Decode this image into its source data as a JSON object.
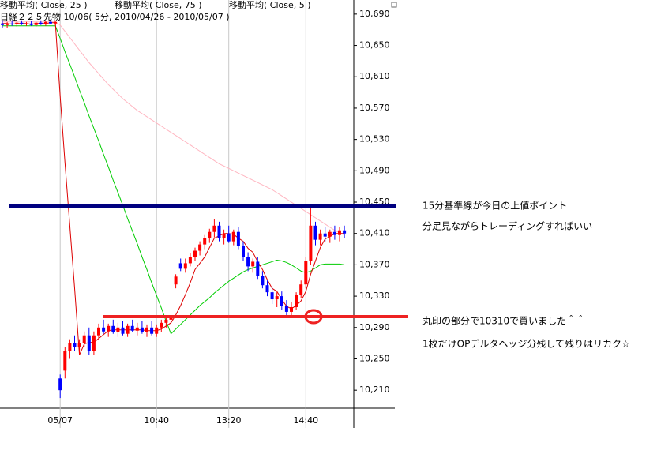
{
  "chart_data": {
    "type": "candlestick",
    "title": "日経２２５先物 10/06( 5分, 2010/04/26 - 2010/05/07 )",
    "categories": [
      null,
      null,
      null,
      null,
      null,
      null,
      null,
      null,
      null,
      null,
      null,
      null,
      "05/07",
      null,
      null,
      null,
      null,
      null,
      null,
      null,
      null,
      null,
      null,
      null,
      null,
      null,
      null,
      null,
      null,
      null,
      null,
      null,
      "10:40",
      null,
      null,
      null,
      null,
      null,
      null,
      null,
      null,
      null,
      null,
      null,
      null,
      null,
      null,
      "13:20",
      null,
      null,
      null,
      null,
      null,
      null,
      null,
      null,
      null,
      null,
      null,
      null,
      null,
      null,
      null,
      "14:40",
      null,
      null,
      null,
      null,
      null,
      null,
      null,
      null
    ],
    "open": [
      10678,
      10676,
      10678,
      10677,
      10679,
      10677,
      10678,
      10676,
      10679,
      10677,
      10680,
      10678,
      10225,
      10235,
      10260,
      10270,
      10265,
      10270,
      10280,
      10260,
      10280,
      10290,
      10285,
      10292,
      10284,
      10290,
      10282,
      10292,
      10286,
      10290,
      10284,
      10290,
      10282,
      10290,
      10296,
      10300,
      10345,
      10372,
      10365,
      10372,
      10380,
      10388,
      10396,
      10404,
      10412,
      10420,
      10404,
      10410,
      10400,
      10412,
      10394,
      10380,
      10368,
      10374,
      10356,
      10344,
      10335,
      10326,
      10330,
      10318,
      10310,
      10316,
      10332,
      10345,
      10375,
      10420,
      10402,
      10410,
      10406,
      10412,
      10408,
      10414
    ],
    "high": [
      10682,
      10680,
      10682,
      10680,
      10682,
      10680,
      10681,
      10680,
      10682,
      10681,
      10683,
      10682,
      10230,
      10265,
      10275,
      10280,
      10275,
      10285,
      10290,
      10285,
      10295,
      10300,
      10295,
      10300,
      10296,
      10298,
      10295,
      10300,
      10296,
      10298,
      10294,
      10298,
      10294,
      10300,
      10305,
      10310,
      10358,
      10378,
      10378,
      10385,
      10392,
      10400,
      10408,
      10416,
      10428,
      10425,
      10415,
      10420,
      10415,
      10418,
      10400,
      10386,
      10378,
      10380,
      10362,
      10350,
      10342,
      10335,
      10336,
      10325,
      10322,
      10335,
      10350,
      10380,
      10445,
      10425,
      10415,
      10418,
      10415,
      10420,
      10418,
      10420
    ],
    "low": [
      10672,
      10672,
      10675,
      10674,
      10676,
      10675,
      10675,
      10674,
      10676,
      10675,
      10677,
      10676,
      10200,
      10225,
      10250,
      10260,
      10255,
      10265,
      10255,
      10255,
      10275,
      10282,
      10278,
      10282,
      10278,
      10280,
      10278,
      10284,
      10280,
      10282,
      10278,
      10280,
      10278,
      10284,
      10290,
      10292,
      10340,
      10362,
      10360,
      10368,
      10375,
      10382,
      10390,
      10398,
      10405,
      10400,
      10396,
      10398,
      10395,
      10390,
      10375,
      10362,
      10360,
      10352,
      10340,
      10330,
      10320,
      10316,
      10312,
      10305,
      10304,
      10312,
      10328,
      10340,
      10370,
      10395,
      10395,
      10400,
      10398,
      10402,
      10400,
      10404
    ],
    "close": [
      10676,
      10678,
      10677,
      10679,
      10677,
      10678,
      10676,
      10679,
      10677,
      10680,
      10678,
      10680,
      10210,
      10260,
      10270,
      10265,
      10270,
      10280,
      10260,
      10280,
      10290,
      10285,
      10292,
      10284,
      10290,
      10282,
      10292,
      10286,
      10290,
      10284,
      10290,
      10282,
      10290,
      10296,
      10300,
      10305,
      10355,
      10365,
      10372,
      10380,
      10388,
      10396,
      10404,
      10412,
      10420,
      10404,
      10410,
      10400,
      10412,
      10394,
      10380,
      10368,
      10374,
      10356,
      10344,
      10335,
      10326,
      10330,
      10318,
      10310,
      10316,
      10332,
      10345,
      10375,
      10420,
      10402,
      10410,
      10406,
      10412,
      10408,
      10414,
      10410
    ],
    "up_color": "#ff0000",
    "down_color": "#0000ff",
    "series": [
      {
        "name": "移動平均( Close, 25 )",
        "color": "#00cc00",
        "values": [
          10675,
          10675,
          10675,
          10675,
          10675,
          10675,
          10675,
          10675,
          10675,
          10675,
          10675,
          10675,
          10659,
          10642,
          10626,
          10610,
          10593,
          10577,
          10560,
          10544,
          10528,
          10511,
          10495,
          10478,
          10462,
          10446,
          10429,
          10413,
          10397,
          10380,
          10364,
          10347,
          10331,
          10315,
          10298,
          10282,
          10288,
          10294,
          10300,
          10306,
          10312,
          10318,
          10323,
          10328,
          10334,
          10339,
          10344,
          10349,
          10353,
          10357,
          10361,
          10364,
          10366,
          10368,
          10370,
          10372,
          10374,
          10376,
          10375,
          10373,
          10370,
          10366,
          10362,
          10360,
          10362,
          10366,
          10370,
          10371,
          10371,
          10371,
          10371,
          10370
        ]
      },
      {
        "name": "移動平均( Close, 75 )",
        "color": "#ffb6c1",
        "values": [
          10680,
          10680,
          10680,
          10680,
          10680,
          10680,
          10680,
          10680,
          10680,
          10680,
          10680,
          10680,
          10676,
          10668,
          10660,
          10652,
          10644,
          10636,
          10628,
          10621,
          10614,
          10607,
          10600,
          10594,
          10588,
          10582,
          10577,
          10572,
          10567,
          10563,
          10559,
          10555,
          10551,
          10547,
          10543,
          10539,
          10535,
          10531,
          10527,
          10523,
          10519,
          10515,
          10511,
          10507,
          10503,
          10499,
          10496,
          10493,
          10490,
          10487,
          10484,
          10481,
          10478,
          10475,
          10472,
          10469,
          10466,
          10462,
          10458,
          10454,
          10450,
          10446,
          10442,
          10438,
          10434,
          10430,
          10426,
          10422,
          10418,
          10414,
          10411,
          10408
        ]
      },
      {
        "name": "移動平均( Close, 5 )",
        "color": "#dd0000",
        "values": [
          10678,
          10678,
          10677,
          10678,
          10678,
          10678,
          10677,
          10678,
          10678,
          10678,
          10679,
          10679,
          10585,
          10500,
          10420,
          10340,
          10255,
          10269,
          10271,
          10271,
          10276,
          10281,
          10286,
          10287,
          10287,
          10287,
          10287,
          10287,
          10287,
          10287,
          10286,
          10286,
          10286,
          10288,
          10292,
          10296,
          10306,
          10318,
          10332,
          10347,
          10364,
          10372,
          10380,
          10392,
          10404,
          10407,
          10410,
          10410,
          10409,
          10404,
          10400,
          10391,
          10386,
          10374,
          10364,
          10351,
          10340,
          10336,
          10326,
          10317,
          10314,
          10318,
          10324,
          10336,
          10358,
          10375,
          10392,
          10403,
          10406,
          10410,
          10410,
          10410
        ]
      }
    ],
    "ylim": [
      10187,
      10708
    ],
    "yticks": [
      {
        "value": 10210,
        "label": "10,210"
      },
      {
        "value": 10250,
        "label": "10,250"
      },
      {
        "value": 10290,
        "label": "10,290"
      },
      {
        "value": 10330,
        "label": "10,330"
      },
      {
        "value": 10370,
        "label": "10,370"
      },
      {
        "value": 10410,
        "label": "10,410"
      },
      {
        "value": 10450,
        "label": "10,450"
      },
      {
        "value": 10490,
        "label": "10,490"
      },
      {
        "value": 10530,
        "label": "10,530"
      },
      {
        "value": 10570,
        "label": "10,570"
      },
      {
        "value": 10610,
        "label": "10,610"
      },
      {
        "value": 10650,
        "label": "10,650"
      },
      {
        "value": 10690,
        "label": "10,690"
      }
    ],
    "annotations": [
      "15分基準線が今日の上値ポイント",
      "分足見ながらトレーディングすればいい",
      "丸印の部分で10310で買いました＾＾",
      "1枚だけOPデルタヘッジ分残して残りはリカク☆"
    ]
  }
}
